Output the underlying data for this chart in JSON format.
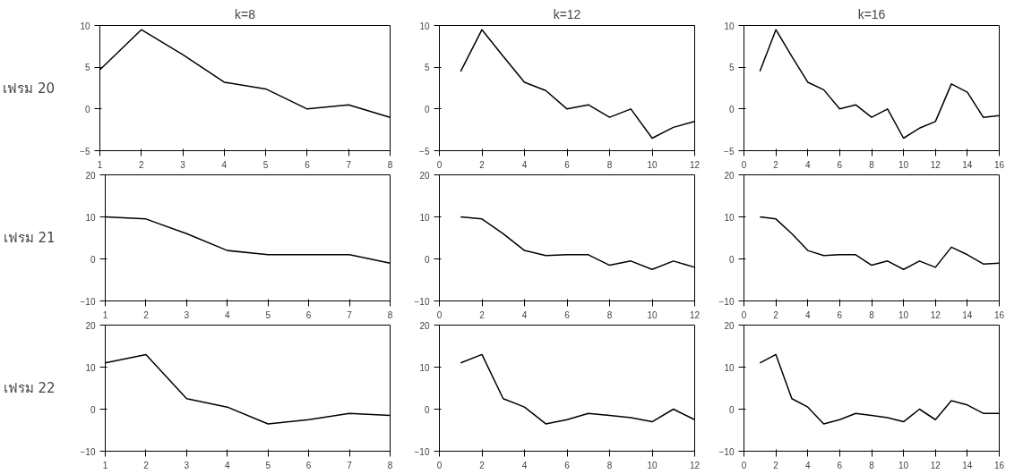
{
  "chart_data": [
    {
      "type": "line",
      "title": "k=8",
      "ylabel": "เฟรม 20",
      "x": [
        1,
        2,
        3,
        4,
        5,
        6,
        7,
        8
      ],
      "values": [
        4.7,
        9.5,
        6.5,
        3.2,
        2.4,
        0,
        0.5,
        -1
      ],
      "color": "#000000",
      "xlim": [
        1,
        8
      ],
      "xticks": [
        1,
        2,
        3,
        4,
        5,
        6,
        7,
        8
      ],
      "ylim": [
        -5,
        10
      ],
      "yticks": [
        -5,
        0,
        5,
        10
      ],
      "grid": false
    },
    {
      "type": "line",
      "title": "k=12",
      "x": [
        1,
        2,
        3,
        4,
        5,
        6,
        7,
        8,
        9,
        10,
        11,
        12
      ],
      "values": [
        4.5,
        9.5,
        6.3,
        3.2,
        2.2,
        0,
        0.5,
        -1,
        0,
        -3.5,
        -2.2,
        -1.5
      ],
      "color": "#000000",
      "xlim": [
        0,
        12
      ],
      "xticks": [
        0,
        2,
        4,
        6,
        8,
        10,
        12
      ],
      "ylim": [
        -5,
        10
      ],
      "yticks": [
        -5,
        0,
        5,
        10
      ],
      "grid": false
    },
    {
      "type": "line",
      "title": "k=16",
      "x": [
        1,
        2,
        3,
        4,
        5,
        6,
        7,
        8,
        9,
        10,
        11,
        12,
        13,
        14,
        15,
        16
      ],
      "values": [
        4.5,
        9.5,
        6.3,
        3.2,
        2.3,
        0,
        0.5,
        -1,
        0,
        -3.5,
        -2.3,
        -1.5,
        3,
        2,
        -1,
        -0.8
      ],
      "color": "#000000",
      "xlim": [
        0,
        16
      ],
      "xticks": [
        0,
        2,
        4,
        6,
        8,
        10,
        12,
        14,
        16
      ],
      "ylim": [
        -5,
        10
      ],
      "yticks": [
        -5,
        0,
        5,
        10
      ],
      "grid": false
    },
    {
      "type": "line",
      "ylabel": "เฟรม 21",
      "x": [
        1,
        2,
        3,
        4,
        5,
        6,
        7,
        8
      ],
      "values": [
        10,
        9.5,
        6,
        2,
        1,
        1,
        1,
        -1
      ],
      "color": "#000000",
      "xlim": [
        1,
        8
      ],
      "xticks": [
        1,
        2,
        3,
        4,
        5,
        6,
        7,
        8
      ],
      "ylim": [
        -10,
        20
      ],
      "yticks": [
        -10,
        0,
        10,
        20
      ],
      "grid": false
    },
    {
      "type": "line",
      "x": [
        1,
        2,
        3,
        4,
        5,
        6,
        7,
        8,
        9,
        10,
        11,
        12
      ],
      "values": [
        10,
        9.5,
        6,
        2,
        0.8,
        1,
        1,
        -1.5,
        -0.5,
        -2.5,
        -0.5,
        -2
      ],
      "color": "#000000",
      "xlim": [
        0,
        12
      ],
      "xticks": [
        0,
        2,
        4,
        6,
        8,
        10,
        12
      ],
      "ylim": [
        -10,
        20
      ],
      "yticks": [
        -10,
        0,
        10,
        20
      ],
      "grid": false
    },
    {
      "type": "line",
      "x": [
        1,
        2,
        3,
        4,
        5,
        6,
        7,
        8,
        9,
        10,
        11,
        12,
        13,
        14,
        15,
        16
      ],
      "values": [
        10,
        9.5,
        6,
        2,
        0.8,
        1,
        1,
        -1.5,
        -0.5,
        -2.5,
        -0.5,
        -2,
        2.8,
        1,
        -1.2,
        -1
      ],
      "color": "#000000",
      "xlim": [
        0,
        16
      ],
      "xticks": [
        0,
        2,
        4,
        6,
        8,
        10,
        12,
        14,
        16
      ],
      "ylim": [
        -10,
        20
      ],
      "yticks": [
        -10,
        0,
        10,
        20
      ],
      "grid": false
    },
    {
      "type": "line",
      "ylabel": "เฟรม 22",
      "x": [
        1,
        2,
        3,
        4,
        5,
        6,
        7,
        8
      ],
      "values": [
        11,
        13,
        2.5,
        0.5,
        -3.5,
        -2.5,
        -1,
        -1.5
      ],
      "color": "#000000",
      "xlim": [
        1,
        8
      ],
      "xticks": [
        1,
        2,
        3,
        4,
        5,
        6,
        7,
        8
      ],
      "ylim": [
        -10,
        20
      ],
      "yticks": [
        -10,
        0,
        10,
        20
      ],
      "grid": false
    },
    {
      "type": "line",
      "x": [
        1,
        2,
        3,
        4,
        5,
        6,
        7,
        8,
        9,
        10,
        11,
        12
      ],
      "values": [
        11,
        13,
        2.5,
        0.5,
        -3.5,
        -2.5,
        -1,
        -1.5,
        -2,
        -3,
        0,
        -2.5
      ],
      "color": "#000000",
      "xlim": [
        0,
        12
      ],
      "xticks": [
        0,
        2,
        4,
        6,
        8,
        10,
        12
      ],
      "ylim": [
        -10,
        20
      ],
      "yticks": [
        -10,
        0,
        10,
        20
      ],
      "grid": false
    },
    {
      "type": "line",
      "x": [
        1,
        2,
        3,
        4,
        5,
        6,
        7,
        8,
        9,
        10,
        11,
        12,
        13,
        14,
        15,
        16
      ],
      "values": [
        11,
        13,
        2.5,
        0.5,
        -3.5,
        -2.5,
        -1,
        -1.5,
        -2,
        -3,
        0,
        -2.5,
        2,
        1,
        -1,
        -1
      ],
      "color": "#000000",
      "xlim": [
        0,
        16
      ],
      "xticks": [
        0,
        2,
        4,
        6,
        8,
        10,
        12,
        14,
        16
      ],
      "ylim": [
        -10,
        20
      ],
      "yticks": [
        -10,
        0,
        10,
        20
      ],
      "grid": false
    }
  ]
}
